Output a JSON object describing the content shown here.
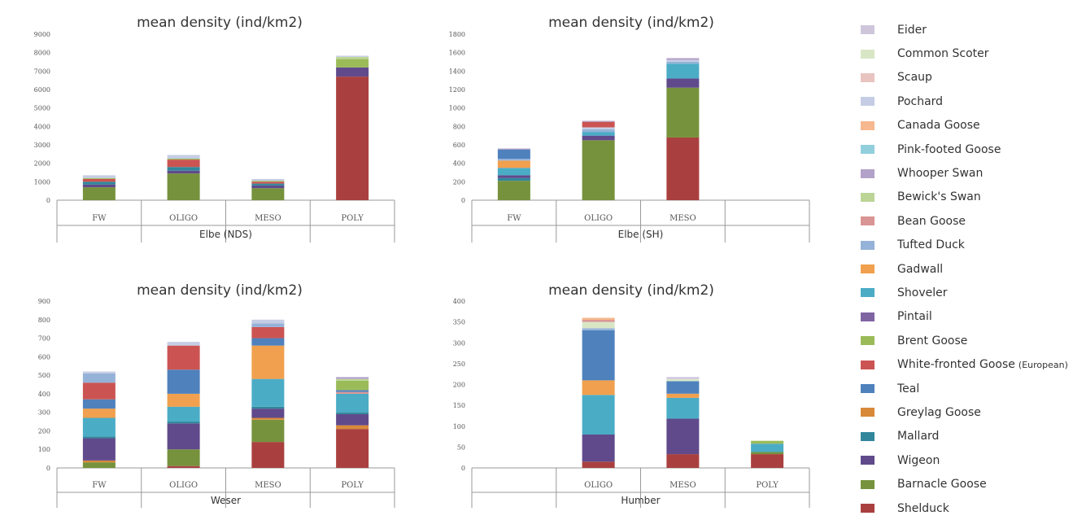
{
  "legend": [
    {
      "label": "Eider",
      "color": "#cfc6dc"
    },
    {
      "label": "Common Scoter",
      "color": "#d9e6c6"
    },
    {
      "label": "Scaup",
      "color": "#e8c4c1"
    },
    {
      "label": "Pochard",
      "color": "#c5cde4"
    },
    {
      "label": "Canada Goose",
      "color": "#f6b88e"
    },
    {
      "label": "Pink-footed Goose",
      "color": "#92cfdd"
    },
    {
      "label": "Whooper Swan",
      "color": "#b2a1c8"
    },
    {
      "label": "Bewick's Swan",
      "color": "#bcd597"
    },
    {
      "label": "Bean Goose",
      "color": "#d99593"
    },
    {
      "label": "Tufted Duck",
      "color": "#95b2d8"
    },
    {
      "label": "Gadwall",
      "color": "#f0a04e"
    },
    {
      "label": "Shoveler",
      "color": "#4bacc6"
    },
    {
      "label": "Pintail",
      "color": "#7f64a2"
    },
    {
      "label": "Brent Goose",
      "color": "#9bbb59"
    },
    {
      "label": "White-fronted Goose",
      "note": "(European)",
      "color": "#cb5452"
    },
    {
      "label": "Teal",
      "color": "#4f81bd"
    },
    {
      "label": "Greylag Goose",
      "color": "#d9893a"
    },
    {
      "label": "Mallard",
      "color": "#31869b"
    },
    {
      "label": "Wigeon",
      "color": "#604a8b"
    },
    {
      "label": "Barnacle Goose",
      "color": "#76923c"
    },
    {
      "label": "Shelduck",
      "color": "#a9403f"
    }
  ],
  "chart_data": [
    {
      "type": "bar",
      "title": "mean density (ind/km2)",
      "xlabel": "Elbe (NDS)",
      "categories": [
        "FW",
        "OLIGO",
        "MESO",
        "POLY"
      ],
      "ylim": [
        0,
        9000
      ],
      "yticks": [
        "0",
        "1000",
        "2000",
        "3000",
        "4000",
        "5000",
        "6000",
        "7000",
        "8000",
        "9000"
      ],
      "series": [
        {
          "name": "Barnacle Goose",
          "values": [
            700,
            1450,
            650,
            0
          ]
        },
        {
          "name": "Shelduck",
          "values": [
            0,
            0,
            0,
            6700
          ]
        },
        {
          "name": "Wigeon",
          "values": [
            150,
            150,
            150,
            500
          ]
        },
        {
          "name": "Mallard",
          "values": [
            150,
            200,
            100,
            0
          ]
        },
        {
          "name": "White-fronted Goose",
          "values": [
            150,
            400,
            100,
            0
          ]
        },
        {
          "name": "Brent Goose",
          "values": [
            50,
            50,
            50,
            450
          ]
        },
        {
          "name": "Bewick's Swan",
          "values": [
            0,
            0,
            0,
            120
          ]
        },
        {
          "name": "Pochard",
          "values": [
            150,
            200,
            100,
            60
          ]
        }
      ]
    },
    {
      "type": "bar",
      "title": "mean density (ind/km2)",
      "xlabel": "Elbe (SH)",
      "categories": [
        "FW",
        "OLIGO",
        "MESO",
        ""
      ],
      "ylim": [
        0,
        1800
      ],
      "yticks": [
        "0",
        "200",
        "400",
        "600",
        "800",
        "1000",
        "1200",
        "1400",
        "1600",
        "1800"
      ],
      "series": [
        {
          "name": "Shelduck",
          "values": [
            0,
            0,
            680,
            0
          ]
        },
        {
          "name": "Barnacle Goose",
          "values": [
            210,
            650,
            540,
            0
          ]
        },
        {
          "name": "Mallard",
          "values": [
            30,
            0,
            0,
            0
          ]
        },
        {
          "name": "Wigeon",
          "values": [
            30,
            50,
            100,
            0
          ]
        },
        {
          "name": "Shoveler",
          "values": [
            80,
            40,
            160,
            0
          ]
        },
        {
          "name": "Gadwall",
          "values": [
            80,
            0,
            0,
            0
          ]
        },
        {
          "name": "Tufted Duck",
          "values": [
            20,
            30,
            20,
            0
          ]
        },
        {
          "name": "Teal",
          "values": [
            100,
            0,
            0,
            0
          ]
        },
        {
          "name": "Pochard",
          "values": [
            0,
            20,
            20,
            0
          ]
        },
        {
          "name": "White-fronted Goose",
          "values": [
            0,
            60,
            0,
            0
          ]
        },
        {
          "name": "Whooper Swan",
          "values": [
            10,
            10,
            20,
            0
          ]
        }
      ]
    },
    {
      "type": "bar",
      "title": "mean density (ind/km2)",
      "xlabel": "Weser",
      "categories": [
        "FW",
        "OLIGO",
        "MESO",
        "POLY"
      ],
      "ylim": [
        0,
        900
      ],
      "yticks": [
        "0",
        "100",
        "200",
        "300",
        "400",
        "500",
        "600",
        "700",
        "800",
        "900"
      ],
      "series": [
        {
          "name": "Shelduck",
          "values": [
            0,
            10,
            140,
            210
          ]
        },
        {
          "name": "Barnacle Goose",
          "values": [
            30,
            90,
            120,
            0
          ]
        },
        {
          "name": "Greylag Goose",
          "values": [
            10,
            0,
            10,
            20
          ]
        },
        {
          "name": "Wigeon",
          "values": [
            120,
            140,
            50,
            60
          ]
        },
        {
          "name": "Mallard",
          "values": [
            10,
            10,
            10,
            10
          ]
        },
        {
          "name": "Shoveler",
          "values": [
            100,
            80,
            150,
            100
          ]
        },
        {
          "name": "Gadwall",
          "values": [
            50,
            70,
            180,
            0
          ]
        },
        {
          "name": "Bean Goose",
          "values": [
            0,
            0,
            0,
            10
          ]
        },
        {
          "name": "Teal",
          "values": [
            50,
            130,
            40,
            10
          ]
        },
        {
          "name": "White-fronted Goose",
          "values": [
            90,
            130,
            60,
            0
          ]
        },
        {
          "name": "Brent Goose",
          "values": [
            0,
            0,
            0,
            50
          ]
        },
        {
          "name": "Tufted Duck",
          "values": [
            50,
            0,
            20,
            0
          ]
        },
        {
          "name": "Bewick's Swan",
          "values": [
            0,
            0,
            0,
            10
          ]
        },
        {
          "name": "Whooper Swan",
          "values": [
            0,
            0,
            0,
            10
          ]
        },
        {
          "name": "Pochard",
          "values": [
            10,
            20,
            20,
            0
          ]
        }
      ]
    },
    {
      "type": "bar",
      "title": "mean density (ind/km2)",
      "xlabel": "Humber",
      "categories": [
        "",
        "OLIGO",
        "MESO",
        "POLY"
      ],
      "ylim": [
        0,
        400
      ],
      "yticks": [
        "0",
        "50",
        "100",
        "150",
        "200",
        "250",
        "300",
        "350",
        "400"
      ],
      "series": [
        {
          "name": "Shelduck",
          "values": [
            0,
            15,
            33,
            33
          ]
        },
        {
          "name": "Barnacle Goose",
          "values": [
            0,
            0,
            0,
            5
          ]
        },
        {
          "name": "Wigeon",
          "values": [
            0,
            65,
            85,
            0
          ]
        },
        {
          "name": "Shoveler",
          "values": [
            0,
            95,
            50,
            20
          ]
        },
        {
          "name": "Gadwall",
          "values": [
            0,
            35,
            10,
            0
          ]
        },
        {
          "name": "Teal",
          "values": [
            0,
            120,
            30,
            0
          ]
        },
        {
          "name": "Brent Goose",
          "values": [
            0,
            0,
            0,
            7
          ]
        },
        {
          "name": "Tufted Duck",
          "values": [
            0,
            5,
            0,
            0
          ]
        },
        {
          "name": "Common Scoter",
          "values": [
            0,
            15,
            5,
            0
          ]
        },
        {
          "name": "Bean Goose",
          "values": [
            0,
            5,
            0,
            0
          ]
        },
        {
          "name": "Eider",
          "values": [
            0,
            0,
            5,
            0
          ]
        },
        {
          "name": "Canada Goose",
          "values": [
            0,
            5,
            0,
            0
          ]
        }
      ]
    }
  ]
}
